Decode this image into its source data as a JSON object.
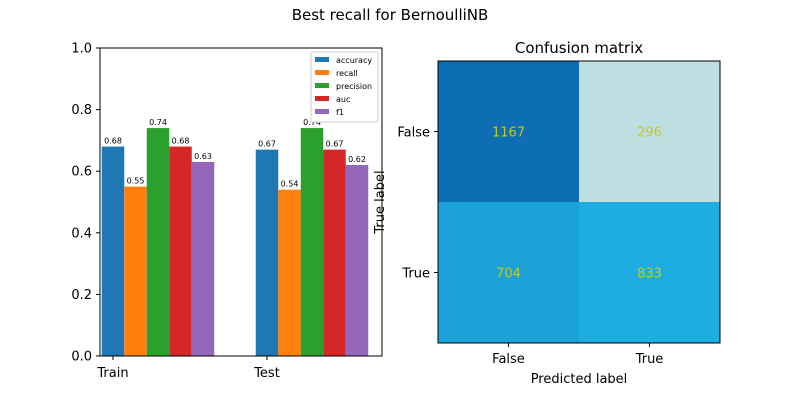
{
  "figure": {
    "suptitle": "Best recall for BernoulliNB"
  },
  "chart_data": [
    {
      "type": "bar",
      "title": "",
      "xlabel": "",
      "ylabel": "",
      "categories": [
        "Train",
        "Test"
      ],
      "ylim": [
        0,
        1.0
      ],
      "yticks": [
        "0.0",
        "0.2",
        "0.4",
        "0.6",
        "0.8",
        "1.0"
      ],
      "legend_position": "top-right",
      "series": [
        {
          "name": "accuracy",
          "color": "#1f77b4",
          "values": [
            0.68,
            0.67
          ],
          "labels": [
            "0.68",
            "0.67"
          ]
        },
        {
          "name": "recall",
          "color": "#ff7f0e",
          "values": [
            0.55,
            0.54
          ],
          "labels": [
            "0.55",
            "0.54"
          ]
        },
        {
          "name": "precision",
          "color": "#2ca02c",
          "values": [
            0.74,
            0.74
          ],
          "labels": [
            "0.74",
            "0.74"
          ]
        },
        {
          "name": "auc",
          "color": "#d62728",
          "values": [
            0.68,
            0.67
          ],
          "labels": [
            "0.68",
            "0.67"
          ]
        },
        {
          "name": "f1",
          "color": "#9467bd",
          "values": [
            0.63,
            0.62
          ],
          "labels": [
            "0.63",
            "0.62"
          ]
        }
      ]
    },
    {
      "type": "heatmap",
      "title": "Confusion matrix",
      "xlabel": "Predicted label",
      "ylabel": "True label",
      "x_categories": [
        "False",
        "True"
      ],
      "y_categories": [
        "False",
        "True"
      ],
      "values": [
        [
          1167,
          296
        ],
        [
          704,
          833
        ]
      ],
      "labels": [
        [
          "1167",
          "296"
        ],
        [
          "704",
          "833"
        ]
      ],
      "cell_colors": [
        [
          "#0e6eb3",
          "#bddfe2"
        ],
        [
          "#1ba2d8",
          "#1eade0"
        ]
      ],
      "annotation_color": "#c8c81e"
    }
  ]
}
